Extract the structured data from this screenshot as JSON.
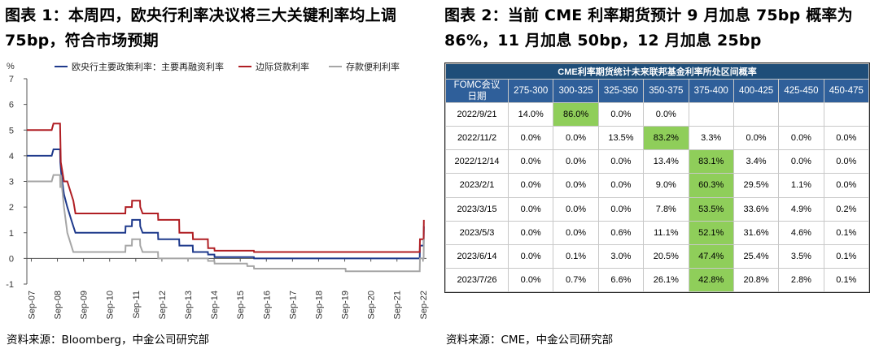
{
  "left": {
    "title": "图表 1：本周四，欧央行利率决议将三大关键利率均上调 75bp，符合市场预期",
    "source": "资料来源：Bloomberg，中金公司研究部"
  },
  "right": {
    "title": "图表 2：当前 CME 利率期货预计 9 月加息 75bp 概率为 86%，11 月加息 50bp，12 月加息 25bp",
    "source": "资料来源：CME，中金公司研究部",
    "table": {
      "caption": "CME利率期货统计未来联邦基金利率所处区间概率",
      "corner_line1": "FOMC会议",
      "corner_line2": "日期",
      "columns": [
        "275-300",
        "300-325",
        "325-350",
        "350-375",
        "375-400",
        "400-425",
        "425-450",
        "450-475"
      ],
      "rows": [
        {
          "date": "2022/9/21",
          "cells": [
            "14.0%",
            "86.0%",
            "0.0%",
            "0.0%",
            "",
            "",
            "",
            ""
          ],
          "highlight": 1
        },
        {
          "date": "2022/11/2",
          "cells": [
            "0.0%",
            "0.0%",
            "13.5%",
            "83.2%",
            "3.3%",
            "0.0%",
            "0.0%",
            "0.0%"
          ],
          "highlight": 3
        },
        {
          "date": "2022/12/14",
          "cells": [
            "0.0%",
            "0.0%",
            "0.0%",
            "13.4%",
            "83.1%",
            "3.4%",
            "0.0%",
            "0.0%"
          ],
          "highlight": 4
        },
        {
          "date": "2023/2/1",
          "cells": [
            "0.0%",
            "0.0%",
            "0.0%",
            "9.0%",
            "60.3%",
            "29.5%",
            "1.1%",
            "0.0%"
          ],
          "highlight": 4
        },
        {
          "date": "2023/3/15",
          "cells": [
            "0.0%",
            "0.0%",
            "0.0%",
            "7.8%",
            "53.5%",
            "33.6%",
            "4.9%",
            "0.2%"
          ],
          "highlight": 4
        },
        {
          "date": "2023/5/3",
          "cells": [
            "0.0%",
            "0.0%",
            "0.6%",
            "11.1%",
            "52.1%",
            "31.6%",
            "4.6%",
            "0.1%"
          ],
          "highlight": 4
        },
        {
          "date": "2023/6/14",
          "cells": [
            "0.0%",
            "0.1%",
            "3.0%",
            "20.5%",
            "47.4%",
            "25.4%",
            "3.5%",
            "0.1%"
          ],
          "highlight": 4
        },
        {
          "date": "2023/7/26",
          "cells": [
            "0.0%",
            "0.7%",
            "6.6%",
            "26.1%",
            "42.8%",
            "20.8%",
            "2.8%",
            "0.1%"
          ],
          "highlight": 4
        }
      ],
      "colors": {
        "caption_bg": "#1f4e79",
        "header_bg": "#2f5f9a",
        "highlight": "#8fce5a"
      }
    }
  },
  "chart_data": {
    "type": "line",
    "ylabel": "%",
    "ylim": [
      -1,
      7
    ],
    "yticks": [
      -1,
      0,
      1,
      2,
      3,
      4,
      5,
      6,
      7
    ],
    "xlim": [
      2007.5,
      2022.8
    ],
    "xticks": [
      {
        "label": "Sep-07",
        "x": 2007.67
      },
      {
        "label": "Sep-08",
        "x": 2008.67
      },
      {
        "label": "Sep-09",
        "x": 2009.67
      },
      {
        "label": "Sep-10",
        "x": 2010.67
      },
      {
        "label": "Sep-11",
        "x": 2011.67
      },
      {
        "label": "Sep-12",
        "x": 2012.67
      },
      {
        "label": "Sep-13",
        "x": 2013.67
      },
      {
        "label": "Sep-14",
        "x": 2014.67
      },
      {
        "label": "Sep-15",
        "x": 2015.67
      },
      {
        "label": "Sep-16",
        "x": 2016.67
      },
      {
        "label": "Sep-17",
        "x": 2017.67
      },
      {
        "label": "Sep-18",
        "x": 2018.67
      },
      {
        "label": "Sep-19",
        "x": 2019.67
      },
      {
        "label": "Sep-20",
        "x": 2020.67
      },
      {
        "label": "Sep-21",
        "x": 2021.67
      },
      {
        "label": "Sep-22",
        "x": 2022.67
      }
    ],
    "legend_position": "top",
    "grid": false,
    "series": [
      {
        "name": "欧央行主要政策利率：主要再融资利率",
        "color": "#1f3a8c",
        "points": [
          [
            2007.5,
            4.0
          ],
          [
            2008.45,
            4.0
          ],
          [
            2008.52,
            4.25
          ],
          [
            2008.77,
            4.25
          ],
          [
            2008.78,
            3.75
          ],
          [
            2008.82,
            3.25
          ],
          [
            2008.92,
            2.5
          ],
          [
            2009.05,
            2.0
          ],
          [
            2009.2,
            1.5
          ],
          [
            2009.28,
            1.25
          ],
          [
            2009.36,
            1.0
          ],
          [
            2011.27,
            1.0
          ],
          [
            2011.28,
            1.25
          ],
          [
            2011.52,
            1.25
          ],
          [
            2011.53,
            1.5
          ],
          [
            2011.83,
            1.5
          ],
          [
            2011.84,
            1.25
          ],
          [
            2011.93,
            1.0
          ],
          [
            2012.52,
            1.0
          ],
          [
            2012.53,
            0.75
          ],
          [
            2013.33,
            0.75
          ],
          [
            2013.34,
            0.5
          ],
          [
            2013.85,
            0.5
          ],
          [
            2013.86,
            0.25
          ],
          [
            2014.43,
            0.25
          ],
          [
            2014.44,
            0.15
          ],
          [
            2014.68,
            0.15
          ],
          [
            2014.69,
            0.05
          ],
          [
            2016.19,
            0.05
          ],
          [
            2016.2,
            0.0
          ],
          [
            2022.54,
            0.0
          ],
          [
            2022.55,
            0.5
          ],
          [
            2022.69,
            0.5
          ],
          [
            2022.7,
            1.25
          ]
        ]
      },
      {
        "name": "边际贷款利率",
        "color": "#b01e23",
        "points": [
          [
            2007.5,
            5.0
          ],
          [
            2008.45,
            5.0
          ],
          [
            2008.52,
            5.25
          ],
          [
            2008.77,
            5.25
          ],
          [
            2008.78,
            4.75
          ],
          [
            2008.8,
            3.75
          ],
          [
            2008.92,
            3.0
          ],
          [
            2009.05,
            3.0
          ],
          [
            2009.2,
            2.5
          ],
          [
            2009.28,
            2.25
          ],
          [
            2009.36,
            1.75
          ],
          [
            2011.27,
            1.75
          ],
          [
            2011.28,
            2.0
          ],
          [
            2011.52,
            2.0
          ],
          [
            2011.53,
            2.25
          ],
          [
            2011.83,
            2.25
          ],
          [
            2011.84,
            2.0
          ],
          [
            2011.93,
            1.75
          ],
          [
            2012.52,
            1.75
          ],
          [
            2012.53,
            1.5
          ],
          [
            2013.33,
            1.5
          ],
          [
            2013.34,
            1.0
          ],
          [
            2013.85,
            1.0
          ],
          [
            2013.86,
            0.75
          ],
          [
            2014.43,
            0.75
          ],
          [
            2014.44,
            0.4
          ],
          [
            2014.68,
            0.4
          ],
          [
            2014.69,
            0.3
          ],
          [
            2016.19,
            0.3
          ],
          [
            2016.2,
            0.25
          ],
          [
            2022.54,
            0.25
          ],
          [
            2022.55,
            0.75
          ],
          [
            2022.69,
            0.75
          ],
          [
            2022.7,
            1.5
          ]
        ]
      },
      {
        "name": "存款便利利率",
        "color": "#a6a6a6",
        "points": [
          [
            2007.5,
            3.0
          ],
          [
            2008.45,
            3.0
          ],
          [
            2008.52,
            3.25
          ],
          [
            2008.77,
            3.25
          ],
          [
            2008.78,
            2.75
          ],
          [
            2008.8,
            3.25
          ],
          [
            2008.92,
            2.0
          ],
          [
            2009.05,
            1.0
          ],
          [
            2009.2,
            0.5
          ],
          [
            2009.28,
            0.25
          ],
          [
            2011.27,
            0.25
          ],
          [
            2011.28,
            0.5
          ],
          [
            2011.52,
            0.5
          ],
          [
            2011.53,
            0.75
          ],
          [
            2011.83,
            0.75
          ],
          [
            2011.84,
            0.5
          ],
          [
            2011.93,
            0.25
          ],
          [
            2012.52,
            0.25
          ],
          [
            2012.53,
            0.0
          ],
          [
            2014.43,
            0.0
          ],
          [
            2014.44,
            -0.1
          ],
          [
            2014.68,
            -0.1
          ],
          [
            2014.69,
            -0.2
          ],
          [
            2015.93,
            -0.2
          ],
          [
            2015.94,
            -0.3
          ],
          [
            2016.19,
            -0.3
          ],
          [
            2016.2,
            -0.4
          ],
          [
            2019.7,
            -0.4
          ],
          [
            2019.71,
            -0.5
          ],
          [
            2022.54,
            -0.5
          ],
          [
            2022.55,
            0.0
          ],
          [
            2022.69,
            0.0
          ],
          [
            2022.7,
            0.75
          ]
        ]
      }
    ]
  }
}
